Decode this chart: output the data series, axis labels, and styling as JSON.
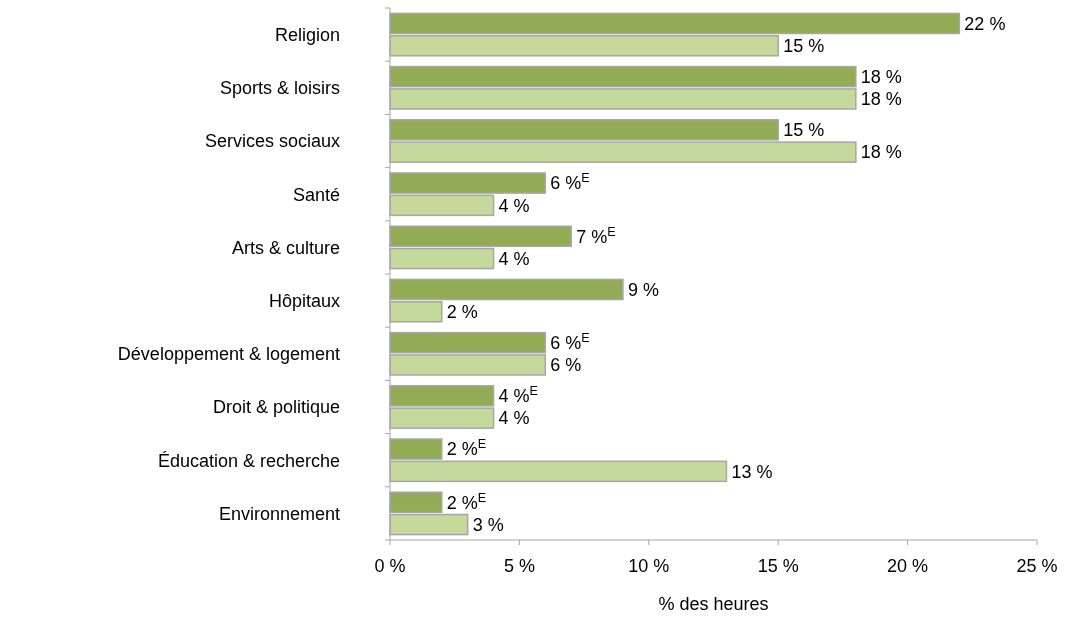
{
  "chart_data": {
    "type": "bar",
    "orientation": "horizontal",
    "xlabel": "% des heures",
    "categories": [
      "Religion",
      "Sports & loisirs",
      "Services sociaux",
      "Santé",
      "Arts & culture",
      "Hôpitaux",
      "Développement & logement",
      "Droit & politique",
      "Éducation & recherche",
      "Environnement"
    ],
    "series": [
      {
        "color": "#92ac55",
        "values": [
          22,
          18,
          15,
          6,
          7,
          9,
          6,
          4,
          2,
          2
        ],
        "value_labels": [
          "22 %",
          "18 %",
          "15 %",
          "6 %$^{E}$",
          "7 %$^{E}$",
          "9 %",
          "6 %$^{E}$",
          "4 %$^{E}$",
          "2 %$^{E}$",
          "2 %$^{E}$"
        ]
      },
      {
        "color": "#c5d99c",
        "values": [
          15,
          18,
          18,
          4,
          4,
          2,
          6,
          4,
          13,
          3
        ],
        "value_labels": [
          "15 %",
          "18 %",
          "18 %",
          "4 %",
          "4 %",
          "2 %",
          "6 %",
          "4 %",
          "13 %",
          "3 %"
        ]
      }
    ],
    "xlim": [
      0,
      25
    ],
    "xticks": [
      {
        "value": 0,
        "label": "0 %"
      },
      {
        "value": 5,
        "label": "5 %"
      },
      {
        "value": 10,
        "label": "10 %"
      },
      {
        "value": 15,
        "label": "15 %"
      },
      {
        "value": 20,
        "label": "20 %"
      },
      {
        "value": 25,
        "label": "25 %"
      }
    ],
    "grid": false
  }
}
